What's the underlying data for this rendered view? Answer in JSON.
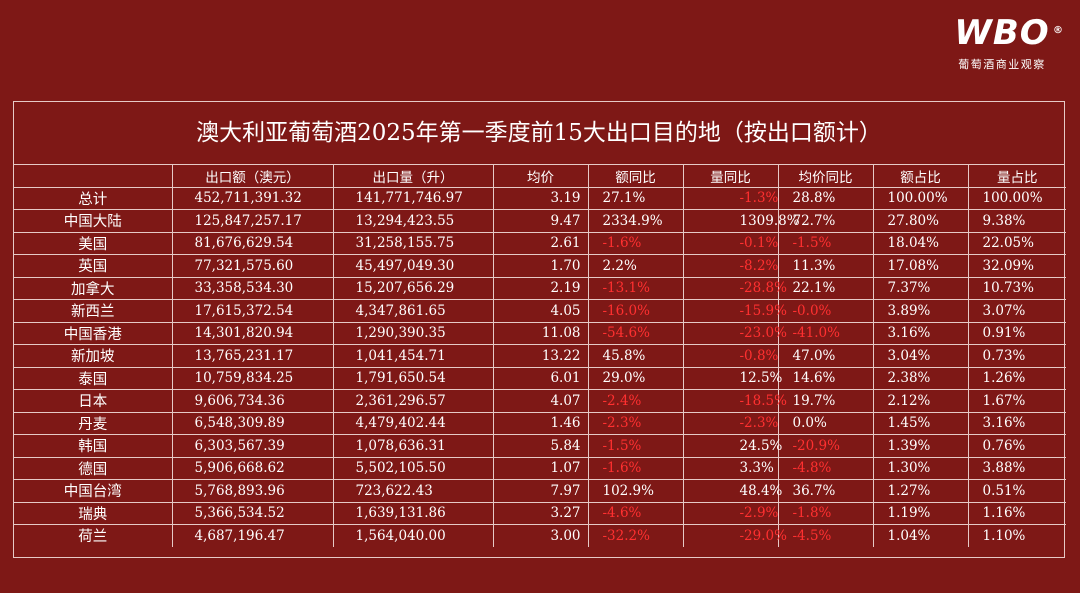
{
  "logo": {
    "mark": "WBO",
    "registered": "®",
    "subtitle": "葡萄酒商业观察"
  },
  "table": {
    "title": "澳大利亚葡萄酒2025年第一季度前15大出口目的地（按出口额计）",
    "headers": [
      "",
      "出口额（澳元）",
      "出口量（升）",
      "均价",
      "额同比",
      "量同比",
      "均价同比",
      "额占比",
      "量占比"
    ],
    "rows": [
      {
        "name": "总计",
        "value": "452,711,391.32",
        "volume": "141,771,746.97",
        "price": "3.19",
        "value_yoy": "27.1%",
        "volume_yoy": "-1.3%",
        "price_yoy": "28.8%",
        "value_share": "100.00%",
        "volume_share": "100.00%"
      },
      {
        "name": "中国大陆",
        "value": "125,847,257.17",
        "volume": "13,294,423.55",
        "price": "9.47",
        "value_yoy": "2334.9%",
        "volume_yoy": "1309.8%",
        "price_yoy": "72.7%",
        "value_share": "27.80%",
        "volume_share": "9.38%"
      },
      {
        "name": "美国",
        "value": "81,676,629.54",
        "volume": "31,258,155.75",
        "price": "2.61",
        "value_yoy": "-1.6%",
        "volume_yoy": "-0.1%",
        "price_yoy": "-1.5%",
        "value_share": "18.04%",
        "volume_share": "22.05%"
      },
      {
        "name": "英国",
        "value": "77,321,575.60",
        "volume": "45,497,049.30",
        "price": "1.70",
        "value_yoy": "2.2%",
        "volume_yoy": "-8.2%",
        "price_yoy": "11.3%",
        "value_share": "17.08%",
        "volume_share": "32.09%"
      },
      {
        "name": "加拿大",
        "value": "33,358,534.30",
        "volume": "15,207,656.29",
        "price": "2.19",
        "value_yoy": "-13.1%",
        "volume_yoy": "-28.8%",
        "price_yoy": "22.1%",
        "value_share": "7.37%",
        "volume_share": "10.73%"
      },
      {
        "name": "新西兰",
        "value": "17,615,372.54",
        "volume": "4,347,861.65",
        "price": "4.05",
        "value_yoy": "-16.0%",
        "volume_yoy": "-15.9%",
        "price_yoy": "-0.0%",
        "value_share": "3.89%",
        "volume_share": "3.07%"
      },
      {
        "name": "中国香港",
        "value": "14,301,820.94",
        "volume": "1,290,390.35",
        "price": "11.08",
        "value_yoy": "-54.6%",
        "volume_yoy": "-23.0%",
        "price_yoy": "-41.0%",
        "value_share": "3.16%",
        "volume_share": "0.91%"
      },
      {
        "name": "新加坡",
        "value": "13,765,231.17",
        "volume": "1,041,454.71",
        "price": "13.22",
        "value_yoy": "45.8%",
        "volume_yoy": "-0.8%",
        "price_yoy": "47.0%",
        "value_share": "3.04%",
        "volume_share": "0.73%"
      },
      {
        "name": "泰国",
        "value": "10,759,834.25",
        "volume": "1,791,650.54",
        "price": "6.01",
        "value_yoy": "29.0%",
        "volume_yoy": "12.5%",
        "price_yoy": "14.6%",
        "value_share": "2.38%",
        "volume_share": "1.26%"
      },
      {
        "name": "日本",
        "value": "9,606,734.36",
        "volume": "2,361,296.57",
        "price": "4.07",
        "value_yoy": "-2.4%",
        "volume_yoy": "-18.5%",
        "price_yoy": "19.7%",
        "value_share": "2.12%",
        "volume_share": "1.67%"
      },
      {
        "name": "丹麦",
        "value": "6,548,309.89",
        "volume": "4,479,402.44",
        "price": "1.46",
        "value_yoy": "-2.3%",
        "volume_yoy": "-2.3%",
        "price_yoy": "0.0%",
        "value_share": "1.45%",
        "volume_share": "3.16%"
      },
      {
        "name": "韩国",
        "value": "6,303,567.39",
        "volume": "1,078,636.31",
        "price": "5.84",
        "value_yoy": "-1.5%",
        "volume_yoy": "24.5%",
        "price_yoy": "-20.9%",
        "value_share": "1.39%",
        "volume_share": "0.76%"
      },
      {
        "name": "德国",
        "value": "5,906,668.62",
        "volume": "5,502,105.50",
        "price": "1.07",
        "value_yoy": "-1.6%",
        "volume_yoy": "3.3%",
        "price_yoy": "-4.8%",
        "value_share": "1.30%",
        "volume_share": "3.88%"
      },
      {
        "name": "中国台湾",
        "value": "5,768,893.96",
        "volume": "723,622.43",
        "price": "7.97",
        "value_yoy": "102.9%",
        "volume_yoy": "48.4%",
        "price_yoy": "36.7%",
        "value_share": "1.27%",
        "volume_share": "0.51%"
      },
      {
        "name": "瑞典",
        "value": "5,366,534.52",
        "volume": "1,639,131.86",
        "price": "3.27",
        "value_yoy": "-4.6%",
        "volume_yoy": "-2.9%",
        "price_yoy": "-1.8%",
        "value_share": "1.19%",
        "volume_share": "1.16%"
      },
      {
        "name": "荷兰",
        "value": "4,687,196.47",
        "volume": "1,564,040.00",
        "price": "3.00",
        "value_yoy": "-32.2%",
        "volume_yoy": "-29.0%",
        "price_yoy": "-4.5%",
        "value_share": "1.04%",
        "volume_share": "1.10%"
      }
    ]
  },
  "colors": {
    "background": "#7e1816",
    "negative": "#ff3030",
    "text": "#ffffff",
    "border": "#e7c9c6"
  }
}
